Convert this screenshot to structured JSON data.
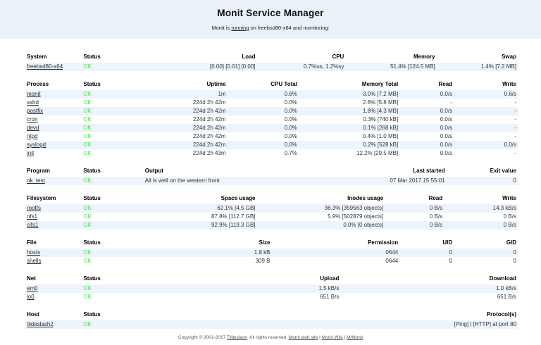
{
  "header": {
    "title": "Monit Service Manager",
    "subtitle_prefix": "Monit is ",
    "subtitle_link": "running",
    "subtitle_suffix": " on freebsd80-x64 and monitoring:"
  },
  "colors": {
    "band_background": "#EAF1F8",
    "row_stripe": "#EDF4FB",
    "status_ok_green": "#55D455"
  },
  "tables": [
    {
      "name": "system",
      "columns": [
        {
          "label": "System",
          "align": "left"
        },
        {
          "label": "Status",
          "align": "left"
        },
        {
          "label": "Load",
          "align": "right"
        },
        {
          "label": "CPU",
          "align": "right"
        },
        {
          "label": "Memory",
          "align": "right"
        },
        {
          "label": "Swap",
          "align": "right"
        }
      ],
      "rows": [
        {
          "cells": [
            {
              "text": "freebsd80-x64",
              "type": "link"
            },
            {
              "text": "OK",
              "type": "ok"
            },
            {
              "text": "[0.00] [0.01] [0.00]"
            },
            {
              "text": "0.7%us, 1.2%sy"
            },
            {
              "text": "51.4% [124.5 MB]"
            },
            {
              "text": "1.4% [7.2 MB]"
            }
          ]
        }
      ]
    },
    {
      "name": "process",
      "columns": [
        {
          "label": "Process",
          "align": "left"
        },
        {
          "label": "Status",
          "align": "left"
        },
        {
          "label": "Uptime",
          "align": "right"
        },
        {
          "label": "CPU Total",
          "align": "right"
        },
        {
          "label": "Memory Total",
          "align": "right"
        },
        {
          "label": "Read",
          "align": "right"
        },
        {
          "label": "Write",
          "align": "right"
        }
      ],
      "rows": [
        {
          "cells": [
            {
              "text": "monit",
              "type": "link"
            },
            {
              "text": "OK",
              "type": "ok"
            },
            {
              "text": "1m"
            },
            {
              "text": "0.6%"
            },
            {
              "text": "3.0% [7.2 MB]"
            },
            {
              "text": "0.0/s"
            },
            {
              "text": "0.6/s"
            }
          ]
        },
        {
          "cells": [
            {
              "text": "sshd",
              "type": "link"
            },
            {
              "text": "OK",
              "type": "ok"
            },
            {
              "text": "224d 2h 42m"
            },
            {
              "text": "0.0%"
            },
            {
              "text": "2.8% [5.8 MB]"
            },
            {
              "text": "-"
            },
            {
              "text": "-"
            }
          ]
        },
        {
          "cells": [
            {
              "text": "postfix",
              "type": "link"
            },
            {
              "text": "OK",
              "type": "ok"
            },
            {
              "text": "224d 2h 42m"
            },
            {
              "text": "0.0%"
            },
            {
              "text": "1.8% [4.3 MB]"
            },
            {
              "text": "0.0/s"
            },
            {
              "text": "-"
            }
          ]
        },
        {
          "cells": [
            {
              "text": "cron",
              "type": "link"
            },
            {
              "text": "OK",
              "type": "ok"
            },
            {
              "text": "224d 2h 42m"
            },
            {
              "text": "0.0%"
            },
            {
              "text": "0.3% [740 kB]"
            },
            {
              "text": "0.0/s"
            },
            {
              "text": "-"
            }
          ]
        },
        {
          "cells": [
            {
              "text": "devd",
              "type": "link"
            },
            {
              "text": "OK",
              "type": "ok"
            },
            {
              "text": "224d 2h 42m"
            },
            {
              "text": "0.0%"
            },
            {
              "text": "0.1% [268 kB]"
            },
            {
              "text": "0.0/s"
            },
            {
              "text": "-"
            }
          ]
        },
        {
          "cells": [
            {
              "text": "ntpd",
              "type": "link"
            },
            {
              "text": "OK",
              "type": "ok"
            },
            {
              "text": "224d 2h 42m"
            },
            {
              "text": "0.0%"
            },
            {
              "text": "0.4% [1.0 MB]"
            },
            {
              "text": "0.0/s"
            },
            {
              "text": "-"
            }
          ]
        },
        {
          "cells": [
            {
              "text": "syslogd",
              "type": "link"
            },
            {
              "text": "OK",
              "type": "ok"
            },
            {
              "text": "224d 2h 42m"
            },
            {
              "text": "0.0%"
            },
            {
              "text": "0.2% [528 kB]"
            },
            {
              "text": "0.0/s"
            },
            {
              "text": "0.0/s"
            }
          ]
        },
        {
          "cells": [
            {
              "text": "init",
              "type": "link"
            },
            {
              "text": "OK",
              "type": "ok"
            },
            {
              "text": "224d 2h 43m"
            },
            {
              "text": "0.7%"
            },
            {
              "text": "12.2% [29.5 MB]"
            },
            {
              "text": "0.0/s"
            },
            {
              "text": "-"
            }
          ]
        }
      ]
    },
    {
      "name": "program",
      "columns": [
        {
          "label": "Program",
          "align": "left"
        },
        {
          "label": "Status",
          "align": "left"
        },
        {
          "label": "Output",
          "align": "left"
        },
        {
          "label": "Last started",
          "align": "right"
        },
        {
          "label": "Exit value",
          "align": "right"
        }
      ],
      "rows": [
        {
          "cells": [
            {
              "text": "ok_test",
              "type": "link"
            },
            {
              "text": "OK",
              "type": "ok"
            },
            {
              "text": "All is well on the western front"
            },
            {
              "text": "07 Mar 2017 15:55:01"
            },
            {
              "text": "0"
            }
          ]
        }
      ]
    },
    {
      "name": "filesystem",
      "columns": [
        {
          "label": "Filesystem",
          "align": "left"
        },
        {
          "label": "Status",
          "align": "left"
        },
        {
          "label": "Space usage",
          "align": "right"
        },
        {
          "label": "Inodes usage",
          "align": "right"
        },
        {
          "label": "Read",
          "align": "right"
        },
        {
          "label": "Write",
          "align": "right"
        }
      ],
      "rows": [
        {
          "cells": [
            {
              "text": "rootfs",
              "type": "link"
            },
            {
              "text": "OK",
              "type": "ok"
            },
            {
              "text": "62.1% [4.5 GB]"
            },
            {
              "text": "36.3% [359563 objects]"
            },
            {
              "text": "0 B/s"
            },
            {
              "text": "14.3 kB/s"
            }
          ]
        },
        {
          "cells": [
            {
              "text": "nfs1",
              "type": "link"
            },
            {
              "text": "OK",
              "type": "ok"
            },
            {
              "text": "87.8% [112.7 GB]"
            },
            {
              "text": "5.9% [502879 objects]"
            },
            {
              "text": "0 B/s"
            },
            {
              "text": "0 B/s"
            }
          ]
        },
        {
          "cells": [
            {
              "text": "cifs1",
              "type": "link"
            },
            {
              "text": "OK",
              "type": "ok"
            },
            {
              "text": "92.9% [119.3 GB]"
            },
            {
              "text": "0.0% [0 objects]"
            },
            {
              "text": "0 B/s"
            },
            {
              "text": "0 B/s"
            }
          ]
        }
      ]
    },
    {
      "name": "file",
      "columns": [
        {
          "label": "File",
          "align": "left"
        },
        {
          "label": "Status",
          "align": "left"
        },
        {
          "label": "Size",
          "align": "right"
        },
        {
          "label": "Permission",
          "align": "right"
        },
        {
          "label": "UID",
          "align": "right"
        },
        {
          "label": "GID",
          "align": "right"
        }
      ],
      "rows": [
        {
          "cells": [
            {
              "text": "hosts",
              "type": "link"
            },
            {
              "text": "OK",
              "type": "ok"
            },
            {
              "text": "1.8 kB"
            },
            {
              "text": "0644"
            },
            {
              "text": "0"
            },
            {
              "text": "0"
            }
          ]
        },
        {
          "cells": [
            {
              "text": "shells",
              "type": "link"
            },
            {
              "text": "OK",
              "type": "ok"
            },
            {
              "text": "309 B"
            },
            {
              "text": "0644"
            },
            {
              "text": "0"
            },
            {
              "text": "0"
            }
          ]
        }
      ]
    },
    {
      "name": "net",
      "columns": [
        {
          "label": "Net",
          "align": "left"
        },
        {
          "label": "Status",
          "align": "left"
        },
        {
          "label": "Upload",
          "align": "right"
        },
        {
          "label": "Download",
          "align": "right"
        }
      ],
      "rows": [
        {
          "cells": [
            {
              "text": "em0",
              "type": "link"
            },
            {
              "text": "OK",
              "type": "ok"
            },
            {
              "text": "1.5 kB/s"
            },
            {
              "text": "1.0 kB/s"
            }
          ]
        },
        {
          "cells": [
            {
              "text": "lo0",
              "type": "link"
            },
            {
              "text": "OK",
              "type": "ok"
            },
            {
              "text": "651 B/s"
            },
            {
              "text": "651 B/s"
            }
          ]
        }
      ]
    },
    {
      "name": "host",
      "columns": [
        {
          "label": "Host",
          "align": "left"
        },
        {
          "label": "Status",
          "align": "left"
        },
        {
          "label": "Protocol(s)",
          "align": "right"
        }
      ],
      "rows": [
        {
          "cells": [
            {
              "text": "tildeslash2",
              "type": "link"
            },
            {
              "text": "OK",
              "type": "ok"
            },
            {
              "text": "[Ping]  | [HTTP] at port 80"
            }
          ]
        }
      ]
    }
  ],
  "footer": {
    "segments": [
      {
        "text": "Copyright © 2001-2017 ",
        "type": "text"
      },
      {
        "text": "Tildeslash",
        "type": "link"
      },
      {
        "text": ". All rights reserved. ",
        "type": "text"
      },
      {
        "text": "Monit web site",
        "type": "link"
      },
      {
        "text": " | ",
        "type": "text"
      },
      {
        "text": "Monit Wiki",
        "type": "link"
      },
      {
        "text": " | ",
        "type": "text"
      },
      {
        "text": "M/Monit",
        "type": "link"
      }
    ]
  }
}
